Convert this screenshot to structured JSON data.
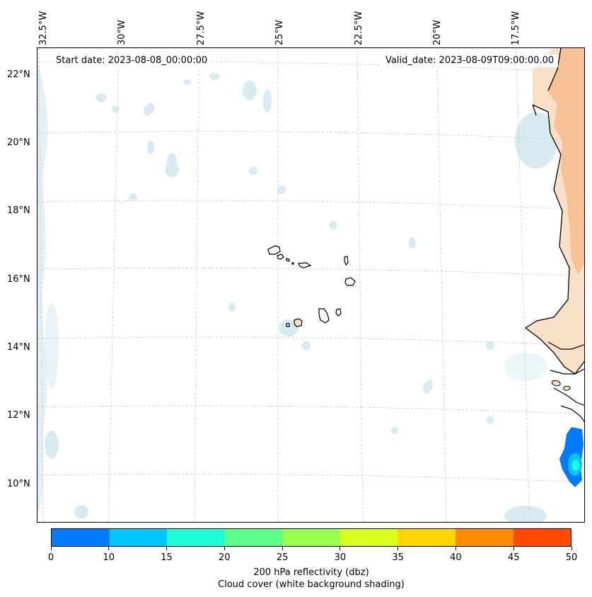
{
  "map": {
    "start_date": "Start date: 2023-08-08_00:00:00",
    "valid_date": "Valid_date: 2023-08-09T09:00:00.00",
    "lon_labels": [
      "32.5°W",
      "30°W",
      "27.5°W",
      "25°W",
      "22.5°W",
      "20°W",
      "17.5°W"
    ],
    "lat_labels": [
      "22°N",
      "20°N",
      "18°N",
      "16°N",
      "14°N",
      "12°N",
      "10°N"
    ],
    "region": "Cabo Verde and West African coast (Senegal, Gambia, Guinea-Bissau, Guinea)"
  },
  "colorbar": {
    "ticks": [
      "0",
      "10",
      "15",
      "20",
      "25",
      "30",
      "35",
      "40",
      "45",
      "50"
    ],
    "colors": [
      "#007bff",
      "#00c8ff",
      "#1effd7",
      "#5cff8a",
      "#9bff50",
      "#d8ff1e",
      "#ffd700",
      "#ff8c00",
      "#ff4a00"
    ],
    "label_line1": "200 hPa reflectivity (dbz)",
    "label_line2": "Cloud cover (white background shading)"
  },
  "colors": {
    "cloud_shading": "#cfe6ee",
    "land_orange": "#f6b98a",
    "reflectivity_low": "#007bff",
    "reflectivity_mid": "#00c8ff",
    "reflectivity_high": "#1effd7"
  }
}
